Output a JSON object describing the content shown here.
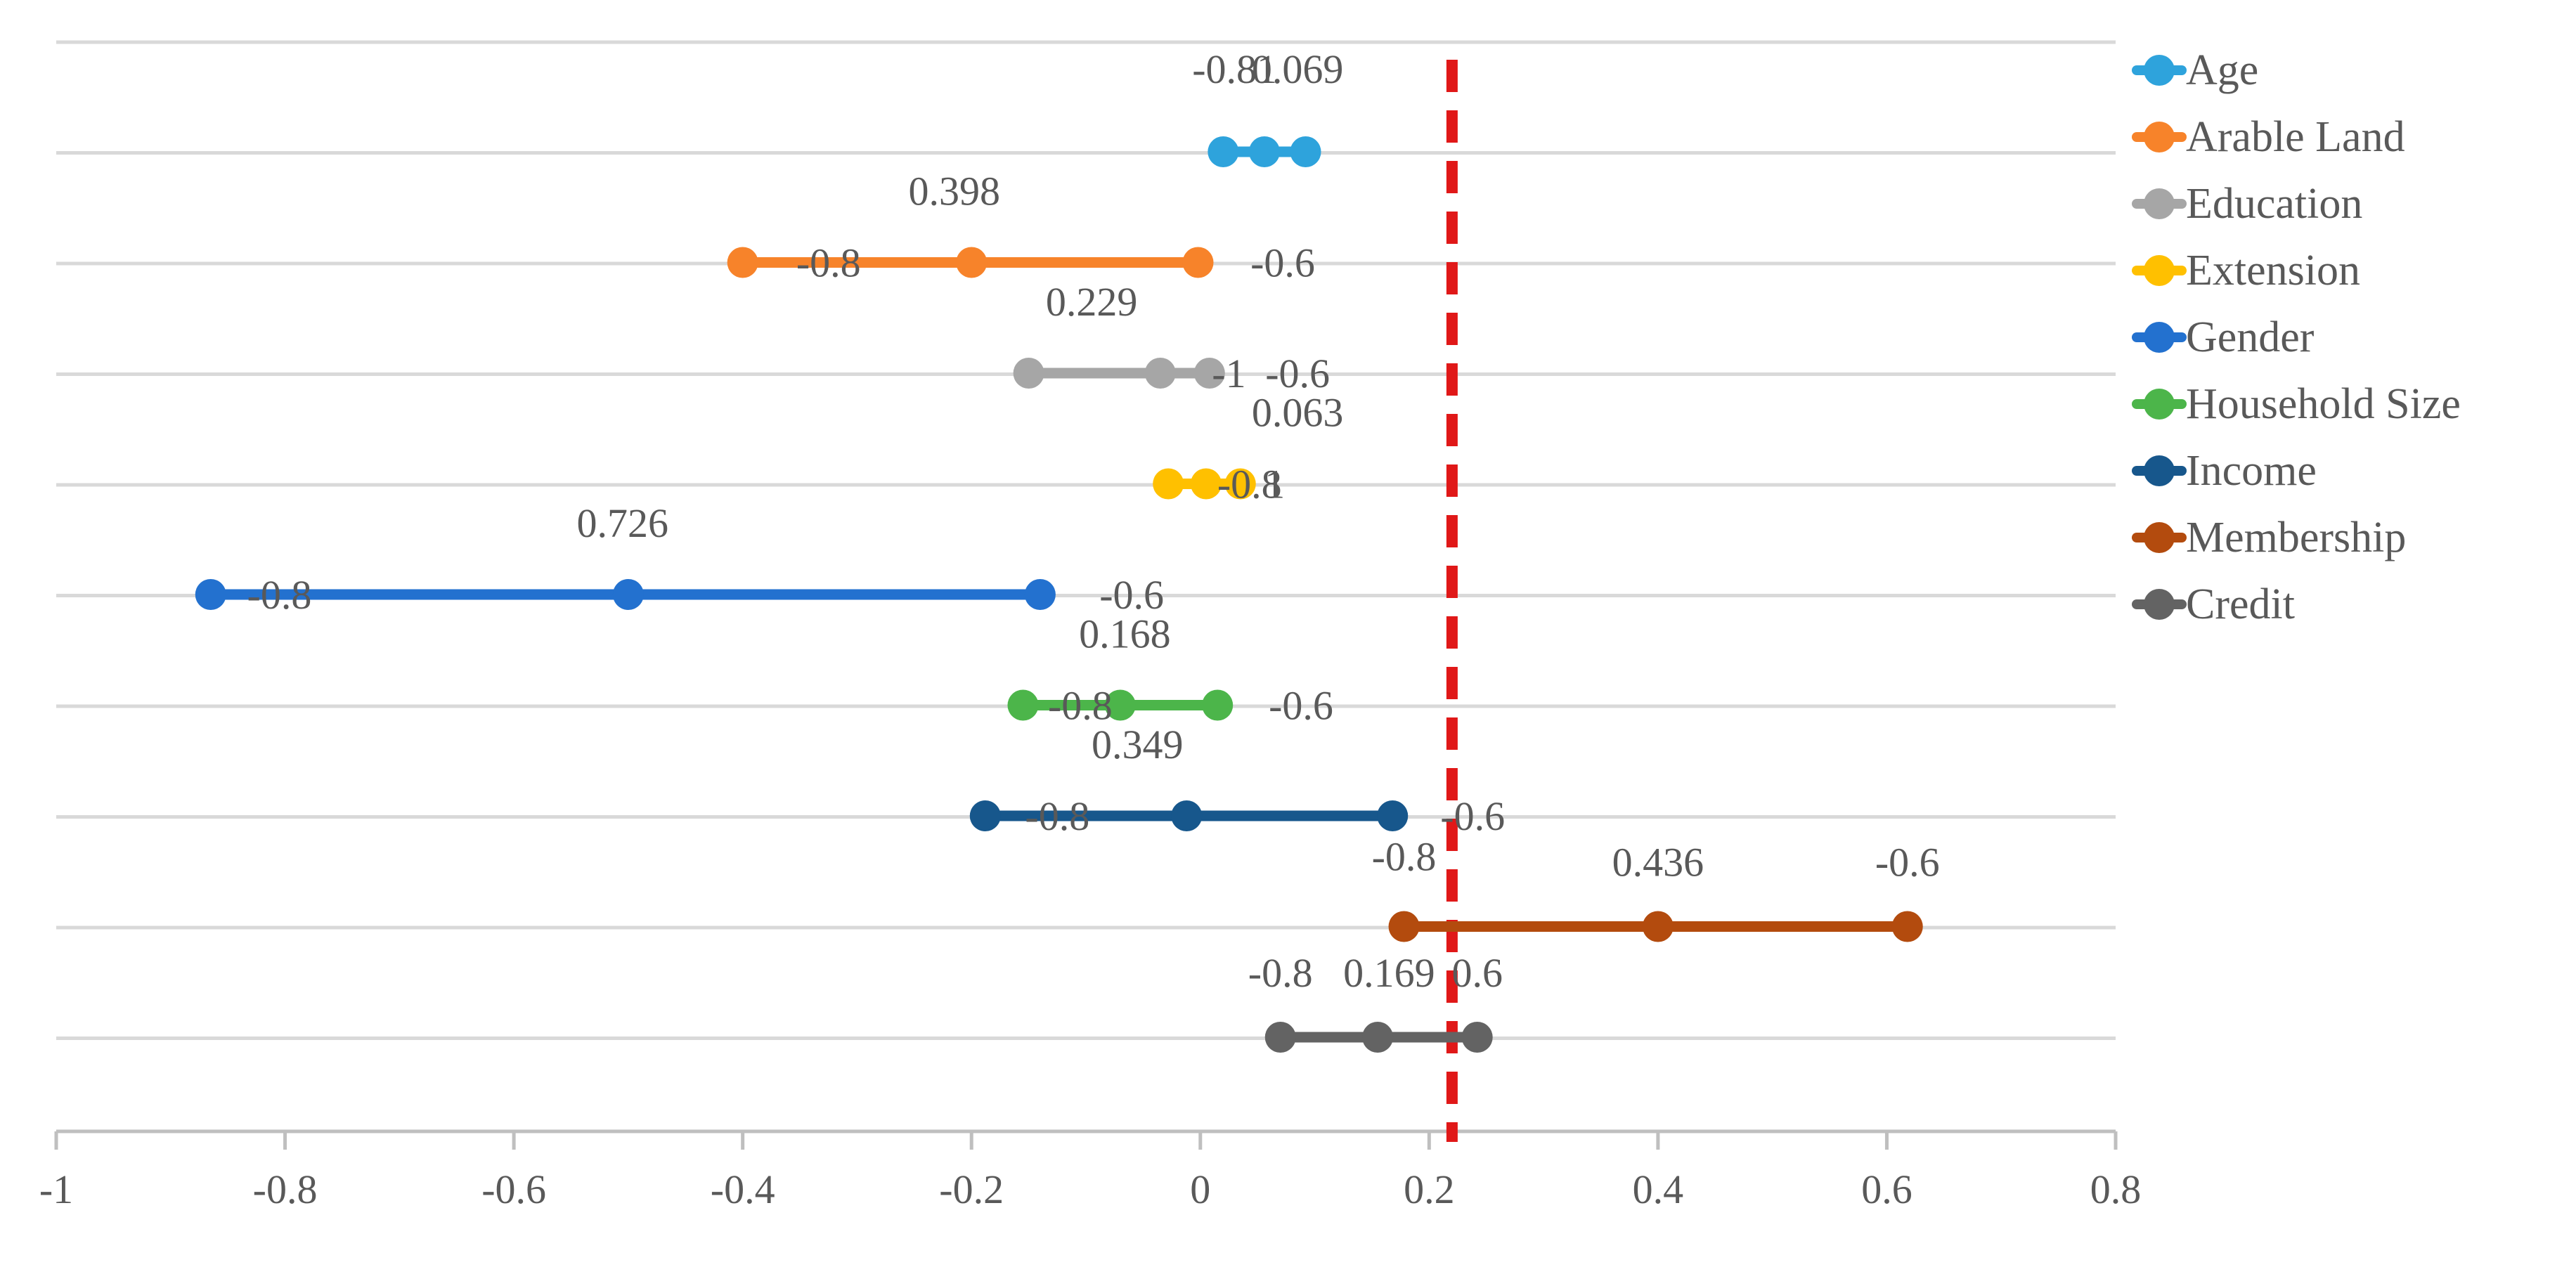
{
  "chart_data": {
    "type": "dot-range",
    "title": "",
    "xlabel": "",
    "ylabel": "",
    "xlim": [
      -1,
      0.8
    ],
    "x_ticks": [
      "-1",
      "-0.8",
      "-0.6",
      "-0.4",
      "-0.2",
      "0",
      "0.2",
      "0.4",
      "0.6",
      "0.8"
    ],
    "x_tick_values": [
      -1,
      -0.8,
      -0.6,
      -0.4,
      -0.2,
      0,
      0.2,
      0.4,
      0.6,
      0.8
    ],
    "grid": "horizontal",
    "legend_position": "right",
    "reference_line": {
      "x": 0.22,
      "color": "#e01818",
      "style": "dashed"
    },
    "series": [
      {
        "name": "Age",
        "color": "#2ea3dc",
        "points": [
          0.02,
          0.056,
          0.092
        ],
        "labels": [
          {
            "text": "-0.81",
            "x": 0.03
          },
          {
            "text": "0.069",
            "x": 0.085
          }
        ]
      },
      {
        "name": "Arable Land",
        "color": "#f7832a",
        "points": [
          -0.4,
          -0.2,
          -0.002
        ],
        "labels": [
          {
            "text": "0.398",
            "x": -0.215
          },
          {
            "text": "-0.8",
            "x": -0.325
          },
          {
            "text": "-0.6",
            "x": 0.072
          }
        ]
      },
      {
        "name": "Education",
        "color": "#a6a6a6",
        "points": [
          -0.15,
          -0.035,
          0.008
        ],
        "labels": [
          {
            "text": "0.229",
            "x": -0.095
          },
          {
            "text": "-1",
            "x": 0.025
          },
          {
            "text": "-0.6",
            "x": 0.085
          }
        ]
      },
      {
        "name": "Extension",
        "color": "#ffc000",
        "points": [
          -0.028,
          0.005,
          0.035
        ],
        "labels": [
          {
            "text": "0.063",
            "x": 0.085
          },
          {
            "text": "-0.8",
            "x": 0.043
          },
          {
            "text": "1",
            "x": 0.065
          }
        ]
      },
      {
        "name": "Gender",
        "color": "#2371cf",
        "points": [
          -0.865,
          -0.5,
          -0.14
        ],
        "labels": [
          {
            "text": "0.726",
            "x": -0.505
          },
          {
            "text": "-0.8",
            "x": -0.805
          },
          {
            "text": "-0.6",
            "x": -0.06
          }
        ]
      },
      {
        "name": "Household Size",
        "color": "#4cb54a",
        "points": [
          -0.155,
          -0.07,
          0.015
        ],
        "labels": [
          {
            "text": "0.168",
            "x": -0.066
          },
          {
            "text": "-0.8",
            "x": -0.105
          },
          {
            "text": "-0.6",
            "x": 0.088
          }
        ]
      },
      {
        "name": "Income",
        "color": "#17578c",
        "points": [
          -0.188,
          -0.012,
          0.168
        ],
        "labels": [
          {
            "text": "0.349",
            "x": -0.055
          },
          {
            "text": "-0.8",
            "x": -0.125
          },
          {
            "text": "-0.6",
            "x": 0.238
          }
        ]
      },
      {
        "name": "Membership",
        "color": "#b34b0e",
        "points": [
          0.178,
          0.4,
          0.618
        ],
        "labels": [
          {
            "text": "-0.8",
            "x": 0.178
          },
          {
            "text": "0.436",
            "x": 0.4
          },
          {
            "text": "-0.6",
            "x": 0.618
          }
        ]
      },
      {
        "name": "Credit",
        "color": "#636363",
        "points": [
          0.07,
          0.155,
          0.242
        ],
        "labels": [
          {
            "text": "-0.8",
            "x": 0.07
          },
          {
            "text": "0.169",
            "x": 0.165
          },
          {
            "text": "0.6",
            "x": 0.242
          }
        ]
      }
    ]
  }
}
